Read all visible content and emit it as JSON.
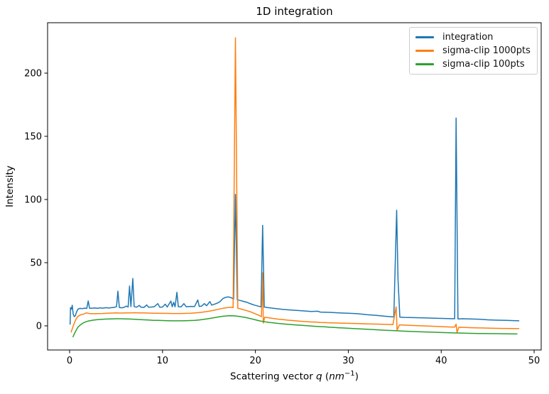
{
  "xlabel_parts": {
    "prefix": "Scattering vector ",
    "q": "q",
    "open": " (",
    "unit": "nm",
    "sup": "−1",
    "close": ")"
  },
  "chart_data": {
    "type": "line",
    "title": "1D integration",
    "xlabel": "Scattering vector q (nm⁻¹)",
    "ylabel": "Intensity",
    "xticks": [
      0,
      10,
      20,
      30,
      40,
      50
    ],
    "yticks": [
      0,
      50,
      100,
      150,
      200
    ],
    "xlim": [
      -2.37,
      50.76
    ],
    "ylim": [
      -19.1,
      239.9
    ],
    "grid": false,
    "legend_position": "upper right",
    "frame_color": "#000000",
    "background": "#ffffff",
    "series": [
      {
        "name": "integration",
        "color": "#1f77b4",
        "points": [
          [
            0.05,
            1.0
          ],
          [
            0.1,
            14.4
          ],
          [
            0.2,
            13.2
          ],
          [
            0.28,
            16.3
          ],
          [
            0.38,
            9.5
          ],
          [
            0.5,
            7.3
          ],
          [
            0.62,
            8.0
          ],
          [
            0.75,
            11.0
          ],
          [
            0.9,
            13.2
          ],
          [
            1.1,
            13.8
          ],
          [
            1.35,
            13.6
          ],
          [
            1.6,
            14.0
          ],
          [
            1.85,
            13.8
          ],
          [
            2.0,
            19.7
          ],
          [
            2.15,
            14.0
          ],
          [
            2.4,
            13.9
          ],
          [
            2.7,
            14.2
          ],
          [
            3.0,
            13.9
          ],
          [
            3.3,
            14.3
          ],
          [
            3.6,
            14.0
          ],
          [
            3.9,
            14.4
          ],
          [
            4.2,
            14.1
          ],
          [
            4.5,
            14.4
          ],
          [
            4.8,
            14.6
          ],
          [
            5.05,
            15.2
          ],
          [
            5.2,
            27.5
          ],
          [
            5.35,
            14.6
          ],
          [
            5.6,
            14.3
          ],
          [
            5.85,
            14.6
          ],
          [
            6.1,
            15.6
          ],
          [
            6.3,
            14.9
          ],
          [
            6.45,
            31.5
          ],
          [
            6.6,
            15.2
          ],
          [
            6.8,
            37.5
          ],
          [
            6.95,
            15.3
          ],
          [
            7.2,
            14.8
          ],
          [
            7.5,
            16.2
          ],
          [
            7.7,
            14.7
          ],
          [
            8.0,
            14.6
          ],
          [
            8.3,
            16.5
          ],
          [
            8.5,
            14.7
          ],
          [
            8.8,
            14.9
          ],
          [
            9.1,
            15.1
          ],
          [
            9.5,
            17.6
          ],
          [
            9.7,
            14.8
          ],
          [
            10.0,
            14.9
          ],
          [
            10.3,
            17.2
          ],
          [
            10.5,
            14.9
          ],
          [
            10.9,
            19.6
          ],
          [
            11.05,
            15.1
          ],
          [
            11.2,
            18.6
          ],
          [
            11.35,
            15.1
          ],
          [
            11.55,
            26.6
          ],
          [
            11.7,
            15.1
          ],
          [
            12.0,
            15.1
          ],
          [
            12.3,
            17.6
          ],
          [
            12.55,
            15.1
          ],
          [
            12.85,
            15.3
          ],
          [
            13.15,
            15.4
          ],
          [
            13.45,
            15.3
          ],
          [
            13.8,
            20.5
          ],
          [
            13.95,
            15.4
          ],
          [
            14.2,
            15.6
          ],
          [
            14.5,
            17.6
          ],
          [
            14.75,
            15.9
          ],
          [
            15.1,
            19.2
          ],
          [
            15.3,
            16.4
          ],
          [
            15.6,
            17.2
          ],
          [
            15.9,
            18.0
          ],
          [
            16.2,
            19.2
          ],
          [
            16.5,
            21.6
          ],
          [
            16.8,
            22.6
          ],
          [
            17.1,
            22.9
          ],
          [
            17.4,
            22.3
          ],
          [
            17.65,
            21.2
          ],
          [
            17.85,
            104.0
          ],
          [
            18.05,
            20.6
          ],
          [
            18.35,
            20.1
          ],
          [
            18.7,
            19.4
          ],
          [
            19.1,
            18.6
          ],
          [
            19.5,
            17.4
          ],
          [
            19.9,
            16.4
          ],
          [
            20.3,
            15.6
          ],
          [
            20.6,
            15.0
          ],
          [
            20.78,
            79.5
          ],
          [
            20.95,
            14.9
          ],
          [
            21.3,
            14.5
          ],
          [
            22.0,
            13.8
          ],
          [
            23.0,
            13.0
          ],
          [
            24.0,
            12.4
          ],
          [
            25.0,
            11.9
          ],
          [
            26.0,
            11.4
          ],
          [
            26.7,
            11.6
          ],
          [
            27.0,
            10.9
          ],
          [
            28.0,
            10.7
          ],
          [
            29.0,
            10.3
          ],
          [
            30.0,
            10.0
          ],
          [
            31.0,
            9.6
          ],
          [
            32.0,
            8.9
          ],
          [
            33.0,
            8.3
          ],
          [
            34.0,
            7.6
          ],
          [
            34.9,
            7.0
          ],
          [
            35.2,
            91.5
          ],
          [
            35.35,
            37.0
          ],
          [
            35.55,
            6.9
          ],
          [
            36.0,
            6.7
          ],
          [
            37.0,
            6.5
          ],
          [
            38.0,
            6.3
          ],
          [
            39.0,
            6.1
          ],
          [
            40.0,
            5.9
          ],
          [
            41.0,
            5.7
          ],
          [
            41.45,
            5.6
          ],
          [
            41.6,
            164.5
          ],
          [
            41.8,
            5.5
          ],
          [
            42.3,
            5.6
          ],
          [
            43.0,
            5.5
          ],
          [
            44.0,
            5.3
          ],
          [
            45.0,
            4.8
          ],
          [
            46.0,
            4.5
          ],
          [
            47.0,
            4.3
          ],
          [
            48.0,
            4.1
          ],
          [
            48.4,
            4.0
          ]
        ]
      },
      {
        "name": "sigma-clip 1000pts",
        "color": "#ff7f0e",
        "points": [
          [
            0.15,
            -5.2
          ],
          [
            0.3,
            -2.0
          ],
          [
            0.5,
            2.0
          ],
          [
            0.7,
            5.5
          ],
          [
            0.9,
            7.5
          ],
          [
            1.2,
            8.8
          ],
          [
            1.5,
            9.3
          ],
          [
            1.8,
            10.3
          ],
          [
            2.1,
            9.8
          ],
          [
            2.5,
            9.6
          ],
          [
            3.0,
            9.7
          ],
          [
            3.5,
            9.8
          ],
          [
            4.0,
            10.0
          ],
          [
            4.5,
            10.1
          ],
          [
            5.0,
            10.2
          ],
          [
            5.5,
            10.1
          ],
          [
            6.0,
            10.2
          ],
          [
            6.5,
            10.3
          ],
          [
            7.0,
            10.4
          ],
          [
            7.5,
            10.3
          ],
          [
            8.0,
            10.2
          ],
          [
            8.5,
            10.1
          ],
          [
            9.0,
            10.0
          ],
          [
            9.5,
            10.0
          ],
          [
            10.0,
            9.9
          ],
          [
            10.5,
            9.9
          ],
          [
            11.0,
            9.8
          ],
          [
            11.5,
            9.8
          ],
          [
            12.0,
            9.8
          ],
          [
            12.5,
            9.9
          ],
          [
            13.0,
            10.0
          ],
          [
            13.5,
            10.2
          ],
          [
            14.0,
            10.5
          ],
          [
            14.5,
            11.0
          ],
          [
            15.0,
            11.6
          ],
          [
            15.5,
            12.3
          ],
          [
            16.0,
            13.1
          ],
          [
            16.5,
            13.9
          ],
          [
            17.0,
            14.5
          ],
          [
            17.3,
            14.7
          ],
          [
            17.6,
            14.5
          ],
          [
            17.85,
            228.0
          ],
          [
            18.1,
            14.0
          ],
          [
            18.5,
            13.2
          ],
          [
            19.0,
            12.2
          ],
          [
            19.5,
            11.0
          ],
          [
            20.0,
            9.5
          ],
          [
            20.4,
            8.2
          ],
          [
            20.65,
            7.3
          ],
          [
            20.78,
            42.0
          ],
          [
            20.85,
            2.2
          ],
          [
            21.0,
            6.8
          ],
          [
            21.5,
            6.3
          ],
          [
            22.0,
            5.8
          ],
          [
            22.5,
            5.3
          ],
          [
            23.0,
            4.9
          ],
          [
            23.5,
            4.5
          ],
          [
            24.0,
            4.2
          ],
          [
            24.5,
            3.9
          ],
          [
            25.0,
            3.6
          ],
          [
            25.5,
            3.3
          ],
          [
            26.0,
            3.1
          ],
          [
            26.5,
            2.9
          ],
          [
            27.0,
            2.7
          ],
          [
            27.5,
            2.6
          ],
          [
            28.0,
            2.4
          ],
          [
            28.5,
            2.3
          ],
          [
            29.0,
            2.2
          ],
          [
            29.5,
            2.1
          ],
          [
            30.0,
            2.0
          ],
          [
            31.0,
            1.8
          ],
          [
            32.0,
            1.6
          ],
          [
            33.0,
            1.4
          ],
          [
            34.0,
            1.2
          ],
          [
            34.8,
            1.0
          ],
          [
            35.15,
            15.0
          ],
          [
            35.25,
            -3.5
          ],
          [
            35.5,
            0.8
          ],
          [
            36.0,
            0.6
          ],
          [
            37.0,
            0.3
          ],
          [
            38.0,
            0.0
          ],
          [
            39.0,
            -0.3
          ],
          [
            40.0,
            -0.6
          ],
          [
            41.0,
            -0.9
          ],
          [
            41.45,
            -1.0
          ],
          [
            41.6,
            1.3
          ],
          [
            41.7,
            -5.2
          ],
          [
            41.9,
            -1.1
          ],
          [
            42.5,
            -1.3
          ],
          [
            43.5,
            -1.5
          ],
          [
            44.5,
            -1.7
          ],
          [
            45.5,
            -1.9
          ],
          [
            46.5,
            -2.0
          ],
          [
            47.5,
            -2.1
          ],
          [
            48.4,
            -2.2
          ]
        ]
      },
      {
        "name": "sigma-clip 100pts",
        "color": "#2ca02c",
        "points": [
          [
            0.35,
            -9.0
          ],
          [
            0.5,
            -6.5
          ],
          [
            0.7,
            -3.5
          ],
          [
            0.9,
            -1.0
          ],
          [
            1.2,
            1.0
          ],
          [
            1.5,
            2.5
          ],
          [
            2.0,
            3.8
          ],
          [
            2.5,
            4.5
          ],
          [
            3.0,
            4.9
          ],
          [
            3.5,
            5.2
          ],
          [
            4.0,
            5.4
          ],
          [
            4.5,
            5.5
          ],
          [
            5.0,
            5.6
          ],
          [
            5.5,
            5.6
          ],
          [
            6.0,
            5.5
          ],
          [
            6.5,
            5.4
          ],
          [
            7.0,
            5.2
          ],
          [
            7.5,
            5.0
          ],
          [
            8.0,
            4.8
          ],
          [
            8.5,
            4.6
          ],
          [
            9.0,
            4.4
          ],
          [
            9.5,
            4.3
          ],
          [
            10.0,
            4.2
          ],
          [
            10.5,
            4.1
          ],
          [
            11.0,
            4.0
          ],
          [
            11.5,
            4.0
          ],
          [
            12.0,
            4.0
          ],
          [
            12.5,
            4.1
          ],
          [
            13.0,
            4.2
          ],
          [
            13.5,
            4.4
          ],
          [
            14.0,
            4.7
          ],
          [
            14.5,
            5.2
          ],
          [
            15.0,
            5.8
          ],
          [
            15.5,
            6.4
          ],
          [
            16.0,
            7.0
          ],
          [
            16.5,
            7.6
          ],
          [
            17.0,
            7.9
          ],
          [
            17.3,
            8.0
          ],
          [
            17.7,
            7.9
          ],
          [
            18.0,
            7.7
          ],
          [
            18.5,
            7.2
          ],
          [
            19.0,
            6.5
          ],
          [
            19.5,
            5.7
          ],
          [
            20.0,
            4.8
          ],
          [
            20.5,
            3.9
          ],
          [
            21.0,
            3.2
          ],
          [
            21.5,
            2.7
          ],
          [
            22.0,
            2.3
          ],
          [
            22.5,
            1.9
          ],
          [
            23.0,
            1.5
          ],
          [
            23.5,
            1.2
          ],
          [
            24.0,
            0.9
          ],
          [
            24.5,
            0.6
          ],
          [
            25.0,
            0.4
          ],
          [
            25.5,
            0.1
          ],
          [
            26.0,
            -0.1
          ],
          [
            26.5,
            -0.4
          ],
          [
            27.0,
            -0.6
          ],
          [
            27.5,
            -0.8
          ],
          [
            28.0,
            -1.1
          ],
          [
            28.5,
            -1.3
          ],
          [
            29.0,
            -1.5
          ],
          [
            29.5,
            -1.7
          ],
          [
            30.0,
            -1.9
          ],
          [
            31.0,
            -2.3
          ],
          [
            32.0,
            -2.7
          ],
          [
            33.0,
            -3.1
          ],
          [
            34.0,
            -3.5
          ],
          [
            35.0,
            -3.8
          ],
          [
            36.0,
            -4.2
          ],
          [
            37.0,
            -4.5
          ],
          [
            38.0,
            -4.8
          ],
          [
            39.0,
            -5.0
          ],
          [
            40.0,
            -5.3
          ],
          [
            41.0,
            -5.5
          ],
          [
            42.0,
            -5.7
          ],
          [
            43.0,
            -5.9
          ],
          [
            44.0,
            -6.0
          ],
          [
            45.0,
            -6.1
          ],
          [
            46.0,
            -6.2
          ],
          [
            47.0,
            -6.3
          ],
          [
            48.2,
            -6.4
          ]
        ]
      }
    ]
  }
}
